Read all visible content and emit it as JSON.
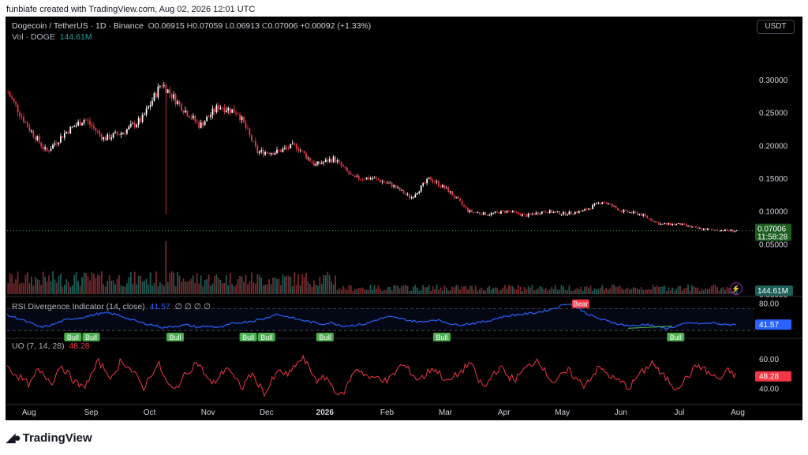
{
  "header_note": "funbiafe created with TradingView.com, Aug 02, 2026 12:01 UTC",
  "symbol": {
    "name": "Dogecoin / TetherUS · 1D · Binance",
    "o_label": "O",
    "o": "0.06915",
    "h_label": "H",
    "h": "0.07059",
    "l_label": "L",
    "l": "0.06913",
    "c_label": "C",
    "c": "0.07006",
    "change": "+0.00092 (+1.33%)"
  },
  "volume": {
    "label": "Vol · DOGE",
    "value": "144.61M"
  },
  "currency_button": "USDT",
  "price_tag": {
    "price": "0.07006",
    "countdown": "11:58:28"
  },
  "volume_tag": "144.61M",
  "rsi": {
    "label": "RSI Divergence Indicator (14, close)",
    "value": "41.57",
    "extras": "∅ ∅ ∅ ∅",
    "tag": "41.57"
  },
  "uo": {
    "label": "UO (7, 14, 28)",
    "value": "48.28",
    "tag": "48.28"
  },
  "brand": "TradingView",
  "colors": {
    "up": "#ffffff",
    "down": "#f23645",
    "rsi": "#2962ff",
    "uo": "#f23645",
    "bull": "#4caf50",
    "bear": "#f23645",
    "volume_down": "#7a2a2e",
    "volume_up": "#1d5e57"
  },
  "chart_data": {
    "type": "candlestick",
    "x_ticks": [
      "Aug",
      "Sep",
      "Oct",
      "Nov",
      "Dec",
      "2026",
      "Feb",
      "Mar",
      "Apr",
      "May",
      "Jun",
      "Jul",
      "Aug"
    ],
    "price_axis": [
      "0.30000",
      "0.25000",
      "0.20000",
      "0.15000",
      "0.10000",
      "0.05000",
      "0.00000"
    ],
    "price_range": [
      0.0,
      0.33
    ],
    "price_path": [
      {
        "date": "Jul 21",
        "close": 0.28
      },
      {
        "date": "Jul 29",
        "close": 0.23
      },
      {
        "date": "Aug 03",
        "close": 0.19
      },
      {
        "date": "Aug 10",
        "close": 0.22
      },
      {
        "date": "Aug 18",
        "close": 0.24
      },
      {
        "date": "Aug 25",
        "close": 0.21
      },
      {
        "date": "Sep 01",
        "close": 0.22
      },
      {
        "date": "Sep 08",
        "close": 0.24
      },
      {
        "date": "Sep 14",
        "close": 0.295
      },
      {
        "date": "Sep 20",
        "close": 0.26
      },
      {
        "date": "Sep 26",
        "close": 0.23
      },
      {
        "date": "Oct 03",
        "close": 0.26
      },
      {
        "date": "Oct 09",
        "close": 0.25
      },
      {
        "date": "Oct 11",
        "close": 0.19
      },
      {
        "date": "Oct 18",
        "close": 0.19
      },
      {
        "date": "Oct 28",
        "close": 0.2
      },
      {
        "date": "Nov 04",
        "close": 0.17
      },
      {
        "date": "Nov 12",
        "close": 0.18
      },
      {
        "date": "Nov 22",
        "close": 0.15
      },
      {
        "date": "Dec 01",
        "close": 0.15
      },
      {
        "date": "Dec 12",
        "close": 0.14
      },
      {
        "date": "Dec 28",
        "close": 0.12
      },
      {
        "date": "Jan 06",
        "close": 0.15
      },
      {
        "date": "Jan 20",
        "close": 0.13
      },
      {
        "date": "Feb 02",
        "close": 0.1
      },
      {
        "date": "Feb 10",
        "close": 0.095
      },
      {
        "date": "Feb 25",
        "close": 0.1
      },
      {
        "date": "Mar 10",
        "close": 0.093
      },
      {
        "date": "Mar 25",
        "close": 0.1
      },
      {
        "date": "Apr 10",
        "close": 0.096
      },
      {
        "date": "Apr 28",
        "close": 0.1
      },
      {
        "date": "May 12",
        "close": 0.115
      },
      {
        "date": "May 25",
        "close": 0.1
      },
      {
        "date": "Jun 05",
        "close": 0.095
      },
      {
        "date": "Jun 12",
        "close": 0.08
      },
      {
        "date": "Jun 25",
        "close": 0.08
      },
      {
        "date": "Jul 05",
        "close": 0.073
      },
      {
        "date": "Jul 20",
        "close": 0.071
      },
      {
        "date": "Aug 02",
        "close": 0.07006
      }
    ],
    "volume_axis": "0.00000",
    "rsi_axis": [
      "80.00"
    ],
    "rsi_path": [
      58,
      52,
      44,
      36,
      40,
      48,
      52,
      55,
      60,
      62,
      58,
      50,
      44,
      40,
      35,
      38,
      40,
      36,
      38,
      35,
      42,
      45,
      48,
      52,
      60,
      55,
      50,
      46,
      42,
      44,
      38,
      40,
      42,
      50,
      55,
      52,
      48,
      45,
      50,
      46,
      40,
      42,
      44,
      48,
      54,
      58,
      60,
      62,
      66,
      72,
      80,
      70,
      58,
      50,
      45,
      40,
      38,
      42,
      36,
      34,
      40,
      44,
      42,
      44,
      40,
      41.57
    ],
    "rsi_labels": [
      {
        "text": "Bull",
        "pos": 0.09
      },
      {
        "text": "Bull",
        "pos": 0.115
      },
      {
        "text": "Bull",
        "pos": 0.23
      },
      {
        "text": "Bull",
        "pos": 0.33
      },
      {
        "text": "Bull",
        "pos": 0.355
      },
      {
        "text": "Bull",
        "pos": 0.435
      },
      {
        "text": "Bull",
        "pos": 0.595
      },
      {
        "text": "Bear",
        "pos": 0.785
      },
      {
        "text": "Bull",
        "pos": 0.915
      }
    ],
    "uo_axis": [
      "60.00",
      "40.00"
    ],
    "uo_range": [
      30,
      70
    ],
    "uo_path": [
      54,
      50,
      46,
      42,
      52,
      48,
      44,
      56,
      50,
      44,
      40,
      48,
      58,
      52,
      46,
      60,
      54,
      48,
      40,
      50,
      56,
      44,
      38,
      46,
      52,
      58,
      50,
      42,
      48,
      55,
      46,
      40,
      50,
      44,
      36,
      46,
      52,
      48,
      56,
      60,
      52,
      44,
      48,
      40,
      34,
      44,
      54,
      50,
      46,
      48,
      44,
      50,
      56,
      52,
      46,
      48,
      54,
      50,
      44,
      48,
      52,
      58,
      46,
      40,
      50,
      54,
      48,
      46,
      52,
      56,
      60,
      50,
      44,
      48,
      52,
      46,
      42,
      48,
      54,
      50,
      46,
      44,
      40,
      48,
      52,
      58,
      50,
      46,
      40,
      44,
      50,
      56,
      52,
      48,
      46,
      52,
      48.28
    ]
  }
}
